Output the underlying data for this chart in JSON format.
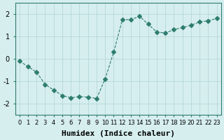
{
  "x": [
    0,
    1,
    2,
    3,
    4,
    5,
    6,
    7,
    8,
    9,
    10,
    11,
    12,
    13,
    14,
    15,
    16,
    17,
    18,
    19,
    20,
    21,
    22,
    23
  ],
  "y": [
    -0.1,
    -0.35,
    -0.6,
    -1.15,
    -1.4,
    -1.65,
    -1.75,
    -1.7,
    -1.72,
    -1.78,
    -0.9,
    0.3,
    1.75,
    1.75,
    1.9,
    1.55,
    1.2,
    1.15,
    1.3,
    1.4,
    1.5,
    1.65,
    1.7,
    1.8
  ],
  "line_color": "#2e7d6e",
  "marker": "D",
  "marker_size": 3,
  "bg_color": "#d6eeee",
  "grid_color": "#b0d4d4",
  "xlabel": "Humidex (Indice chaleur)",
  "xlim": [
    -0.5,
    23.5
  ],
  "ylim": [
    -2.5,
    2.5
  ],
  "yticks": [
    -2,
    -1,
    0,
    1,
    2
  ],
  "xticks": [
    0,
    1,
    2,
    3,
    4,
    5,
    6,
    7,
    8,
    9,
    10,
    11,
    12,
    13,
    14,
    15,
    16,
    17,
    18,
    19,
    20,
    21,
    22,
    23
  ],
  "tick_label_fontsize": 7,
  "xlabel_fontsize": 8,
  "spine_color": "#2e7d6e",
  "line_width": 0.8
}
